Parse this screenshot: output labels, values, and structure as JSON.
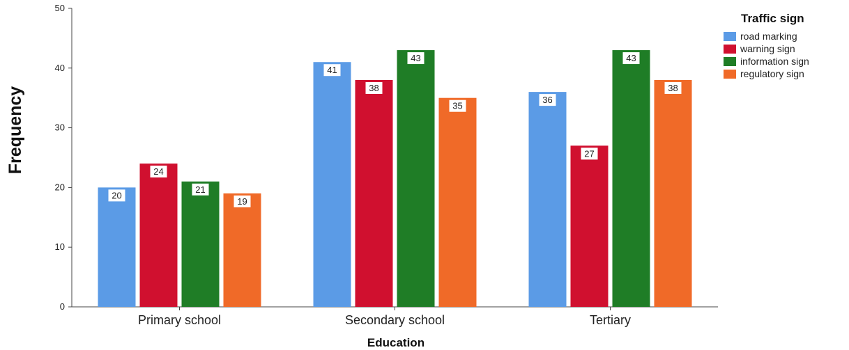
{
  "chart_data": {
    "type": "bar",
    "xlabel": "Education",
    "ylabel": "Frequency",
    "ylim": [
      0,
      50
    ],
    "yticks": [
      0,
      10,
      20,
      30,
      40,
      50
    ],
    "categories": [
      "Primary school",
      "Secondary school",
      "Tertiary"
    ],
    "legend_title": "Traffic sign",
    "legend_position": "top-right",
    "grid": false,
    "series": [
      {
        "name": "road marking",
        "color": "#5b9be6",
        "values": [
          20,
          41,
          36
        ]
      },
      {
        "name": "warning sign",
        "color": "#d0102f",
        "values": [
          24,
          38,
          27
        ]
      },
      {
        "name": "information sign",
        "color": "#1f7d26",
        "values": [
          21,
          43,
          43
        ]
      },
      {
        "name": "regulatory sign",
        "color": "#f06a28",
        "values": [
          19,
          35,
          38
        ]
      }
    ]
  }
}
